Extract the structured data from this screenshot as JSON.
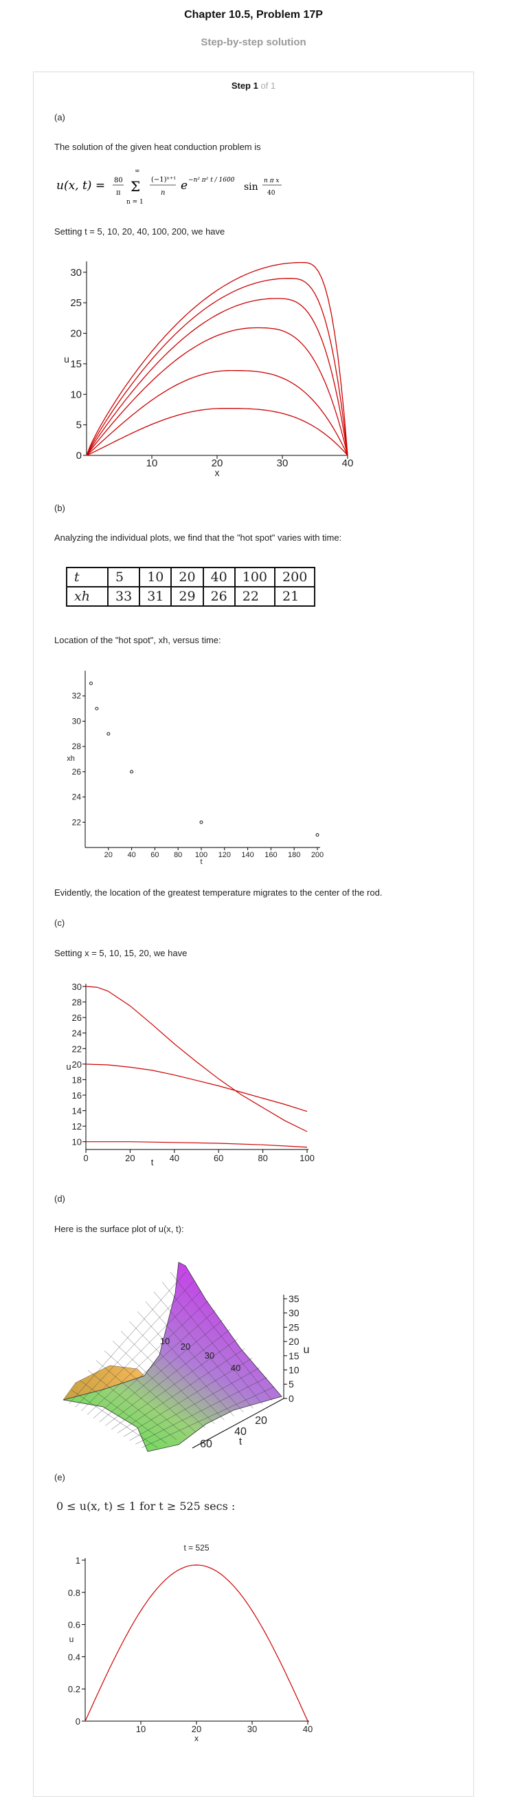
{
  "header": {
    "title": "Chapter 10.5, Problem 17P",
    "subtitle": "Step-by-step solution"
  },
  "step": {
    "label": "Step 1",
    "of": "of 1"
  },
  "parts": {
    "a_label": "(a)",
    "a_intro": "The solution of the given heat conduction problem is",
    "a_setting": "Setting t = 5, 10, 20, 40, 100, 200, we have",
    "b_label": "(b)",
    "b_intro": "Analyzing the individual plots, we find that the \"hot spot\" varies with time:",
    "b_location": "Location of the \"hot spot\", xh, versus time:",
    "b_evidently": "Evidently, the location of the greatest temperature migrates to the center of the rod.",
    "c_label": "(c)",
    "c_setting": "Setting x = 5, 10, 15, 20, we have",
    "d_label": "(d)",
    "d_intro": "Here is the surface plot of u(x, t):",
    "e_label": "(e)",
    "e_statement": "0 ≤ u(x, t) ≤ 1  for  t ≥ 525 secs :"
  },
  "formula": {
    "lhs": "u(x, t) =",
    "coef_num": "80",
    "coef_den": "π",
    "sum_top": "∞",
    "sum_sym": "Σ",
    "sum_bottom": "n = 1",
    "term_num": "(−1)ⁿ⁺¹",
    "term_den": "n",
    "exp_base": "e",
    "exponent": "−n² π² t / 1600",
    "sin": "sin",
    "sin_num": "n π x",
    "sin_den": "40"
  },
  "hot_spot_table": {
    "t_header": "t",
    "x_header": "xh",
    "t_values": [
      "5",
      "10",
      "20",
      "40",
      "100",
      "200"
    ],
    "x_values": [
      "33",
      "31",
      "29",
      "26",
      "22",
      "21"
    ]
  },
  "chart_data": [
    {
      "type": "line",
      "xlabel": "x",
      "ylabel": "u",
      "xlim": [
        0,
        40
      ],
      "ylim": [
        0,
        32
      ],
      "xticks": [
        "10",
        "20",
        "30",
        "40"
      ],
      "yticks": [
        "0",
        "5",
        "10",
        "15",
        "20",
        "25",
        "30"
      ],
      "series_t": [
        5,
        10,
        20,
        40,
        100,
        200
      ],
      "peaks": [
        {
          "t": 5,
          "x": 33,
          "u": 31.6
        },
        {
          "t": 10,
          "x": 31,
          "u": 29.0
        },
        {
          "t": 20,
          "x": 29,
          "u": 25.7
        },
        {
          "t": 40,
          "x": 26,
          "u": 20.9
        },
        {
          "t": 100,
          "x": 22,
          "u": 13.9
        },
        {
          "t": 200,
          "x": 21,
          "u": 7.7
        }
      ],
      "color": "#cc0000"
    },
    {
      "type": "scatter",
      "xlabel": "t",
      "ylabel": "xh",
      "xlim": [
        0,
        200
      ],
      "ylim": [
        20,
        34
      ],
      "xticks": [
        "20",
        "40",
        "60",
        "80",
        "100",
        "120",
        "140",
        "160",
        "180",
        "200"
      ],
      "yticks": [
        "22",
        "24",
        "26",
        "28",
        "30",
        "32"
      ],
      "x": [
        5,
        10,
        20,
        40,
        100,
        200
      ],
      "y": [
        33,
        31,
        29,
        26,
        22,
        21
      ]
    },
    {
      "type": "line",
      "xlabel": "t",
      "ylabel": "u",
      "xlim": [
        0,
        100
      ],
      "ylim": [
        9,
        30
      ],
      "xticks": [
        "0",
        "20",
        "40",
        "60",
        "80",
        "100"
      ],
      "yticks": [
        "10",
        "12",
        "14",
        "16",
        "18",
        "20",
        "22",
        "24",
        "26",
        "28",
        "30"
      ],
      "series": [
        {
          "x_pos": 20,
          "points": [
            [
              0,
              30
            ],
            [
              5,
              29.9
            ],
            [
              10,
              29.4
            ],
            [
              20,
              27.5
            ],
            [
              30,
              25.1
            ],
            [
              40,
              22.6
            ],
            [
              50,
              20.3
            ],
            [
              60,
              18.1
            ],
            [
              70,
              16.1
            ],
            [
              80,
              14.4
            ],
            [
              90,
              12.7
            ],
            [
              100,
              11.3
            ]
          ]
        },
        {
          "x_pos": 10,
          "points": [
            [
              0,
              20
            ],
            [
              10,
              19.9
            ],
            [
              20,
              19.6
            ],
            [
              30,
              19.2
            ],
            [
              40,
              18.6
            ],
            [
              50,
              17.9
            ],
            [
              60,
              17.2
            ],
            [
              70,
              16.4
            ],
            [
              80,
              15.6
            ],
            [
              90,
              14.8
            ],
            [
              100,
              13.9
            ]
          ]
        },
        {
          "x_pos": 5,
          "points": [
            [
              0,
              10
            ],
            [
              20,
              10
            ],
            [
              40,
              9.9
            ],
            [
              60,
              9.8
            ],
            [
              80,
              9.6
            ],
            [
              100,
              9.3
            ]
          ]
        }
      ],
      "color": "#cc0000"
    },
    {
      "type": "surface",
      "zlabel": "u",
      "tlabel": "t",
      "zticks": [
        "35",
        "30",
        "25",
        "20",
        "15",
        "10",
        "5",
        "0"
      ],
      "tticks": [
        "20",
        "40",
        "60"
      ],
      "xticks": [
        "10",
        "20",
        "30",
        "40"
      ]
    },
    {
      "type": "line",
      "title": "t = 525",
      "xlabel": "x",
      "ylabel": "u",
      "xlim": [
        0,
        40
      ],
      "ylim": [
        0,
        1
      ],
      "xticks": [
        "10",
        "20",
        "30",
        "40"
      ],
      "yticks": [
        "0",
        "0.2",
        "0.4",
        "0.6",
        "0.8",
        "1"
      ],
      "peak_u": 0.97,
      "color": "#cc0000"
    }
  ]
}
